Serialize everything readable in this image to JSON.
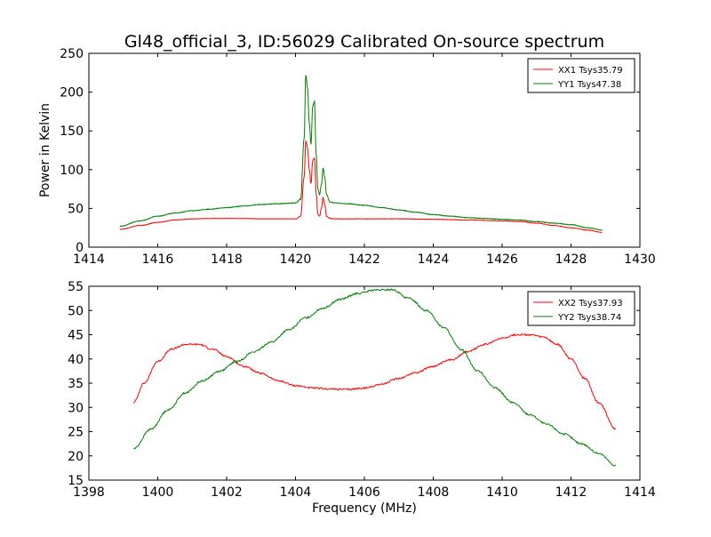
{
  "title": "Gl48_official_3, ID:56029 Calibrated On-source spectrum",
  "chart_data": [
    {
      "type": "line",
      "ylabel": "Power in Kelvin",
      "xlabel": "",
      "xlim": [
        1414,
        1430
      ],
      "ylim": [
        0,
        250
      ],
      "xticks": [
        1414,
        1416,
        1418,
        1420,
        1422,
        1424,
        1426,
        1428,
        1430
      ],
      "yticks": [
        0,
        50,
        100,
        150,
        200,
        250
      ],
      "legend_position": "top-right",
      "series": [
        {
          "name": "XX1 Tsys35.79",
          "color": "#ff0000",
          "x": [
            1414.9,
            1415.5,
            1416.0,
            1416.5,
            1417.0,
            1417.5,
            1418.0,
            1418.5,
            1419.0,
            1419.5,
            1420.0,
            1420.15,
            1420.25,
            1420.3,
            1420.35,
            1420.4,
            1420.45,
            1420.5,
            1420.55,
            1420.6,
            1420.65,
            1420.7,
            1420.75,
            1420.8,
            1420.85,
            1420.9,
            1421.0,
            1421.2,
            1421.5,
            1422.0,
            1423.0,
            1424.0,
            1425.0,
            1426.0,
            1426.5,
            1427.0,
            1427.5,
            1428.0,
            1428.5,
            1428.9
          ],
          "y": [
            23,
            28,
            32,
            35,
            36.5,
            37,
            37,
            37,
            36.5,
            36.5,
            36.5,
            40,
            90,
            137,
            128,
            100,
            82,
            112,
            115,
            70,
            42,
            40,
            50,
            64,
            55,
            40,
            37,
            36.5,
            36.5,
            36.5,
            36.5,
            36,
            35,
            34,
            33,
            31,
            28,
            25,
            22,
            19
          ]
        },
        {
          "name": "YY1 Tsys47.38",
          "color": "#008000",
          "x": [
            1414.9,
            1415.5,
            1416.0,
            1416.5,
            1417.0,
            1417.5,
            1418.0,
            1418.5,
            1419.0,
            1419.5,
            1420.0,
            1420.15,
            1420.25,
            1420.3,
            1420.35,
            1420.4,
            1420.45,
            1420.5,
            1420.55,
            1420.6,
            1420.65,
            1420.7,
            1420.75,
            1420.8,
            1420.85,
            1420.9,
            1421.0,
            1421.2,
            1421.5,
            1422.0,
            1422.5,
            1423.0,
            1423.5,
            1424.0,
            1424.5,
            1425.0,
            1425.5,
            1426.0,
            1426.5,
            1427.0,
            1427.5,
            1428.0,
            1428.5,
            1428.9
          ],
          "y": [
            27,
            34,
            40,
            44,
            47,
            49,
            51,
            53,
            55,
            56,
            57,
            62,
            140,
            222,
            205,
            160,
            133,
            182,
            188,
            120,
            75,
            68,
            80,
            102,
            90,
            68,
            58,
            57,
            56,
            54,
            51,
            48,
            45,
            42,
            40,
            38,
            37,
            36,
            35,
            33,
            31,
            29,
            25,
            22
          ]
        }
      ]
    },
    {
      "type": "line",
      "ylabel": "",
      "xlabel": "Frequency (MHz)",
      "xlim": [
        1398,
        1414
      ],
      "ylim": [
        15,
        55
      ],
      "xticks": [
        1398,
        1400,
        1402,
        1404,
        1406,
        1408,
        1410,
        1412,
        1414
      ],
      "yticks": [
        15,
        20,
        25,
        30,
        35,
        40,
        45,
        50,
        55
      ],
      "legend_position": "top-right",
      "series": [
        {
          "name": "XX2 Tsys37.93",
          "color": "#ff0000",
          "x": [
            1399.3,
            1399.6,
            1400.0,
            1400.4,
            1400.8,
            1401.2,
            1401.6,
            1402.0,
            1402.5,
            1403.0,
            1403.5,
            1404.0,
            1404.5,
            1405.0,
            1405.5,
            1406.0,
            1406.5,
            1407.0,
            1407.5,
            1408.0,
            1408.5,
            1409.0,
            1409.5,
            1410.0,
            1410.4,
            1410.8,
            1411.2,
            1411.6,
            1412.0,
            1412.4,
            1412.8,
            1413.3
          ],
          "y": [
            31,
            35,
            39.5,
            42,
            43,
            43,
            42,
            40.5,
            38.5,
            37,
            35.5,
            34.5,
            34,
            33.8,
            33.7,
            34,
            34.8,
            36,
            37.2,
            38.5,
            39.8,
            41.5,
            43,
            44.3,
            45,
            45,
            44.5,
            43,
            40,
            36,
            31,
            25.5
          ]
        },
        {
          "name": "YY2 Tsys38.74",
          "color": "#008000",
          "x": [
            1399.3,
            1399.8,
            1400.3,
            1400.8,
            1401.3,
            1401.8,
            1402.3,
            1402.8,
            1403.3,
            1403.8,
            1404.3,
            1404.8,
            1405.3,
            1405.8,
            1406.3,
            1406.8,
            1407.3,
            1407.8,
            1408.3,
            1408.8,
            1409.3,
            1409.8,
            1410.3,
            1410.8,
            1411.3,
            1411.8,
            1412.3,
            1412.8,
            1413.3
          ],
          "y": [
            21.5,
            25.5,
            29.5,
            33,
            35.5,
            37.5,
            39.5,
            41.5,
            43.5,
            46,
            48.5,
            50.5,
            52.3,
            53.5,
            54.2,
            54.3,
            52.5,
            50,
            46.5,
            42,
            37.5,
            34,
            31,
            28.5,
            26.5,
            24.5,
            22.5,
            20.5,
            18
          ]
        }
      ]
    }
  ]
}
